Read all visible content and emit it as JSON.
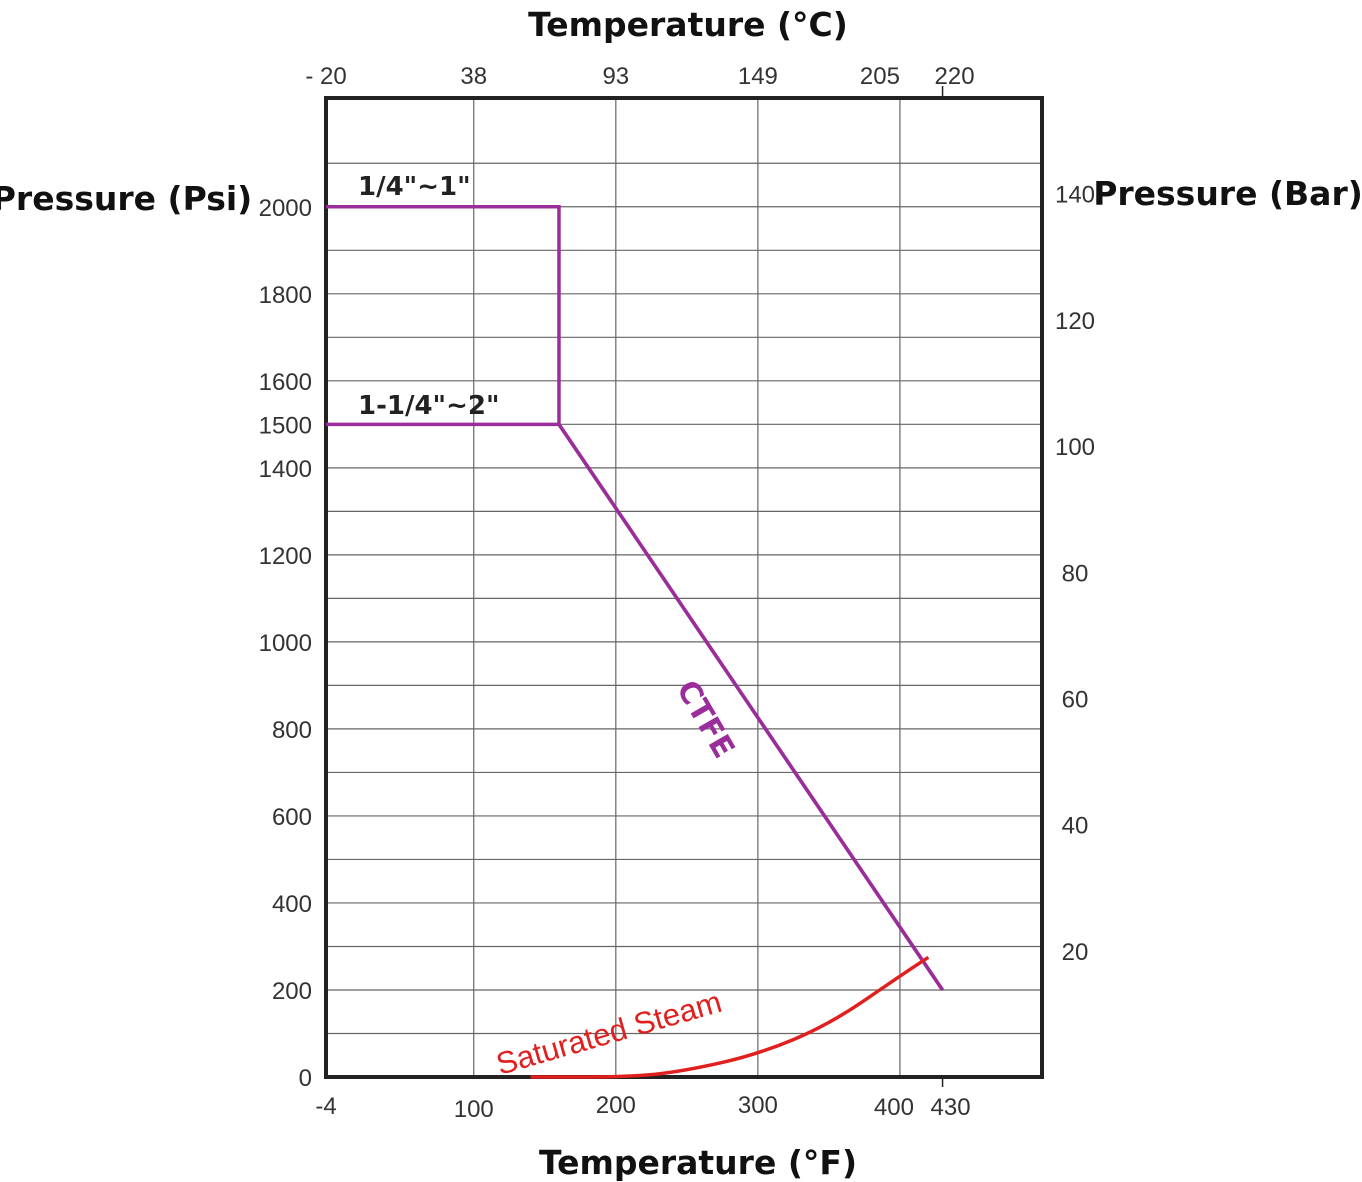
{
  "chart_data": {
    "type": "line",
    "axis_titles": {
      "top": "Temperature (°C)",
      "bottom": "Temperature (°F)",
      "left": "Pressure (Psi)",
      "right": "Pressure (Bar)"
    },
    "x_axis_bottom": {
      "unit": "°F",
      "range": [
        -4,
        500
      ],
      "tick_labels": [
        {
          "label": "-4",
          "value": -4
        },
        {
          "label": "100",
          "value": 100
        },
        {
          "label": "200",
          "value": 200
        },
        {
          "label": "300",
          "value": 300
        },
        {
          "label": "400",
          "value": 400
        },
        {
          "label": "430",
          "value": 430
        }
      ]
    },
    "x_axis_top": {
      "unit": "°C",
      "tick_labels": [
        {
          "label": "- 20",
          "value_f": -4
        },
        {
          "label": "38",
          "value_f": 100
        },
        {
          "label": "93",
          "value_f": 200
        },
        {
          "label": "149",
          "value_f": 300
        },
        {
          "label": "205",
          "value_f": 400
        },
        {
          "label": "220",
          "value_f": 430
        }
      ]
    },
    "y_axis_left": {
      "unit": "Psi",
      "range": [
        0,
        2250
      ],
      "tick_labels": [
        {
          "label": "0",
          "value": 0
        },
        {
          "label": "200",
          "value": 200
        },
        {
          "label": "400",
          "value": 400
        },
        {
          "label": "600",
          "value": 600
        },
        {
          "label": "800",
          "value": 800
        },
        {
          "label": "1000",
          "value": 1000
        },
        {
          "label": "1200",
          "value": 1200
        },
        {
          "label": "1400",
          "value": 1400
        },
        {
          "label": "1500",
          "value": 1500
        },
        {
          "label": "1600",
          "value": 1600
        },
        {
          "label": "1800",
          "value": 1800
        },
        {
          "label": "2000",
          "value": 2000
        }
      ]
    },
    "y_axis_right": {
      "unit": "Bar",
      "tick_labels": [
        {
          "label": "20",
          "value_psi": 290
        },
        {
          "label": "40",
          "value_psi": 580
        },
        {
          "label": "60",
          "value_psi": 870
        },
        {
          "label": "80",
          "value_psi": 1160
        },
        {
          "label": "100",
          "value_psi": 1450
        },
        {
          "label": "120",
          "value_psi": 1740
        },
        {
          "label": "140",
          "value_psi": 2030
        }
      ]
    },
    "gridlines": {
      "vertical_f": [
        100,
        200,
        300,
        400,
        500
      ],
      "horizontal_psi": [
        100,
        200,
        300,
        400,
        500,
        600,
        700,
        800,
        900,
        1000,
        1100,
        1200,
        1300,
        1400,
        1500,
        1600,
        1700,
        1800,
        1900,
        2000,
        2100
      ]
    },
    "series": [
      {
        "name": "1/4\"~1\"",
        "color": "#9b2c9b",
        "points": [
          [
            -4,
            2000
          ],
          [
            160,
            2000
          ],
          [
            160,
            1500
          ]
        ]
      },
      {
        "name": "1-1/4\"~2\"",
        "color": "#9b2c9b",
        "points": [
          [
            -4,
            1500
          ],
          [
            160,
            1500
          ],
          [
            430,
            200
          ]
        ]
      },
      {
        "name": "CTFE",
        "color": "#9b2c9b",
        "points": [
          [
            160,
            1500
          ],
          [
            430,
            200
          ]
        ]
      },
      {
        "name": "Saturated Steam",
        "color": "#e0201e",
        "points": [
          [
            140,
            0
          ],
          [
            212,
            0
          ],
          [
            250,
            15
          ],
          [
            300,
            52
          ],
          [
            350,
            120
          ],
          [
            400,
            232
          ],
          [
            420,
            275
          ]
        ]
      }
    ]
  }
}
